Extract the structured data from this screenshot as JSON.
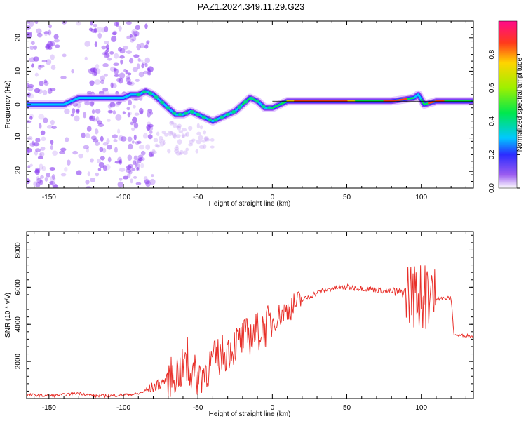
{
  "title": "PAZ1.2024.349.11.29.G23",
  "chart_data": [
    {
      "type": "heatmap",
      "xlabel": "Height of straight line (km)",
      "ylabel": "Frequency (Hz)",
      "xlim": [
        -165,
        135
      ],
      "ylim": [
        -25,
        25
      ],
      "x_ticks": [
        -150,
        -100,
        -50,
        0,
        50,
        100
      ],
      "x_tick_labels": [
        "-150",
        "-100",
        "-50",
        "0",
        "50",
        "100"
      ],
      "y_ticks": [
        -20,
        -10,
        0,
        10,
        20
      ],
      "y_tick_labels": [
        "-20",
        "-10",
        "0",
        "10",
        "20"
      ],
      "colorbar": {
        "label": "Normalized spectral amplitude",
        "range": [
          0,
          1
        ],
        "ticks": [
          0.0,
          0.2,
          0.4,
          0.6,
          0.8
        ],
        "tick_labels": [
          "0.0",
          "0.2",
          "0.4",
          "0.6",
          "0.8"
        ]
      },
      "ridge": {
        "height_km": [
          -165,
          -150,
          -140,
          -130,
          -110,
          -100,
          -95,
          -90,
          -85,
          -80,
          -75,
          -70,
          -65,
          -60,
          -55,
          -50,
          -45,
          -40,
          -35,
          -30,
          -25,
          -20,
          -15,
          -10,
          -5,
          0,
          5,
          10,
          20,
          40,
          60,
          80,
          95,
          98,
          102,
          110,
          135
        ],
        "frequency_hz": [
          0,
          0,
          0,
          2,
          2,
          2,
          3,
          3,
          4,
          3,
          1,
          -1,
          -3,
          -3,
          -2,
          -3,
          -4,
          -5,
          -4,
          -3,
          -2,
          0,
          2,
          1,
          -1,
          -1,
          0,
          1,
          1,
          1,
          1,
          1,
          2,
          3,
          0,
          1,
          1
        ]
      }
    },
    {
      "type": "line",
      "xlabel": "Height of straight line (km)",
      "ylabel": "SNR (10 * v/v)",
      "xlim": [
        -165,
        135
      ],
      "ylim": [
        0,
        9000
      ],
      "x_ticks": [
        -150,
        -100,
        -50,
        0,
        50,
        100
      ],
      "x_tick_labels": [
        "-150",
        "-100",
        "-50",
        "0",
        "50",
        "100"
      ],
      "y_ticks": [
        2000,
        4000,
        6000,
        8000
      ],
      "y_tick_labels": [
        "2000",
        "4000",
        "6000",
        "8000"
      ],
      "line_color": "#e8302a",
      "series": [
        {
          "x": [
            -165,
            -150,
            -140,
            -130,
            -120,
            -110,
            -100,
            -90,
            -80,
            -75,
            -70,
            -65,
            -60,
            -55,
            -50,
            -45,
            -40,
            -35,
            -30,
            -25,
            -20,
            -15,
            -10,
            -5,
            0,
            10,
            20,
            30,
            40,
            50,
            60,
            70,
            80,
            85,
            90,
            95,
            100,
            105,
            110,
            115,
            120,
            122,
            125,
            130,
            135
          ],
          "y": [
            200,
            150,
            200,
            300,
            150,
            150,
            200,
            250,
            600,
            800,
            1100,
            1300,
            1600,
            1400,
            1200,
            1500,
            2000,
            2300,
            2600,
            2900,
            3200,
            3400,
            3600,
            3800,
            4200,
            4800,
            5300,
            5700,
            5950,
            6000,
            5950,
            5850,
            5750,
            5700,
            5800,
            5600,
            5500,
            5500,
            5450,
            5400,
            5400,
            3450,
            3400,
            3400,
            3350
          ]
        }
      ]
    }
  ]
}
